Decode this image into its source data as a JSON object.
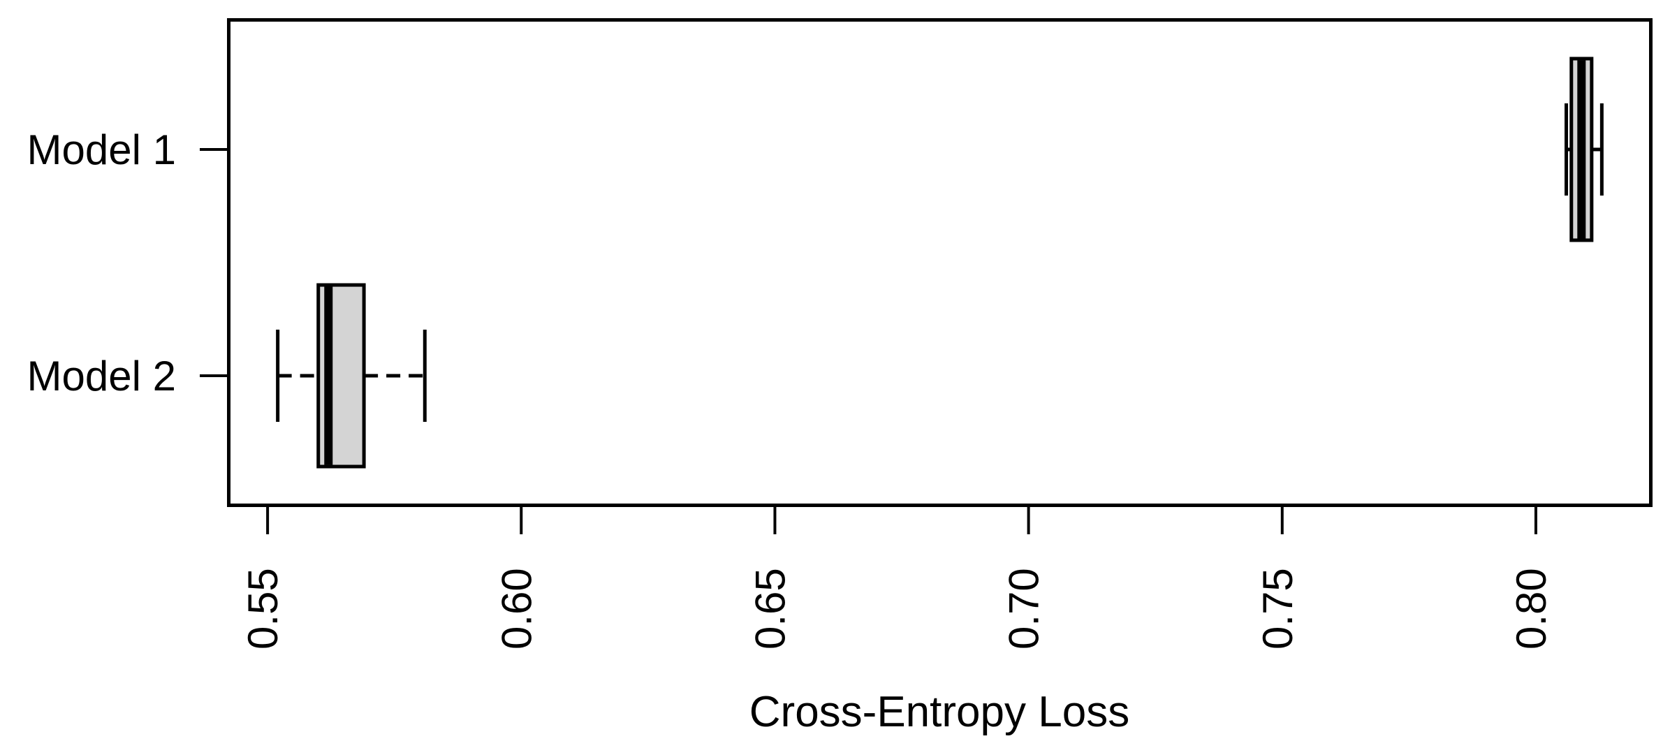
{
  "chart_data": {
    "type": "boxplot",
    "orientation": "horizontal",
    "title": "",
    "xlabel": "Cross-Entropy Loss",
    "ylabel": "",
    "categories": [
      "Model 1",
      "Model 2"
    ],
    "x_tick_values": [
      0.55,
      0.6,
      0.65,
      0.7,
      0.75,
      0.8
    ],
    "x_tick_labels": [
      "0.55",
      "0.60",
      "0.65",
      "0.70",
      "0.75",
      "0.80"
    ],
    "xlim": [
      0.542,
      0.823
    ],
    "x_tick_label_rotation_deg": 90,
    "grid": "off",
    "legend": "none",
    "series": [
      {
        "name": "Model 1",
        "whisker_low": 0.806,
        "q1": 0.807,
        "median": 0.809,
        "q3": 0.811,
        "whisker_high": 0.813
      },
      {
        "name": "Model 2",
        "whisker_low": 0.552,
        "q1": 0.56,
        "median": 0.562,
        "q3": 0.569,
        "whisker_high": 0.581
      }
    ],
    "style": {
      "box_fill": "#d4d4d4",
      "line_color": "#000000",
      "background": "#ffffff",
      "whisker_linestyle": "dashed"
    }
  }
}
